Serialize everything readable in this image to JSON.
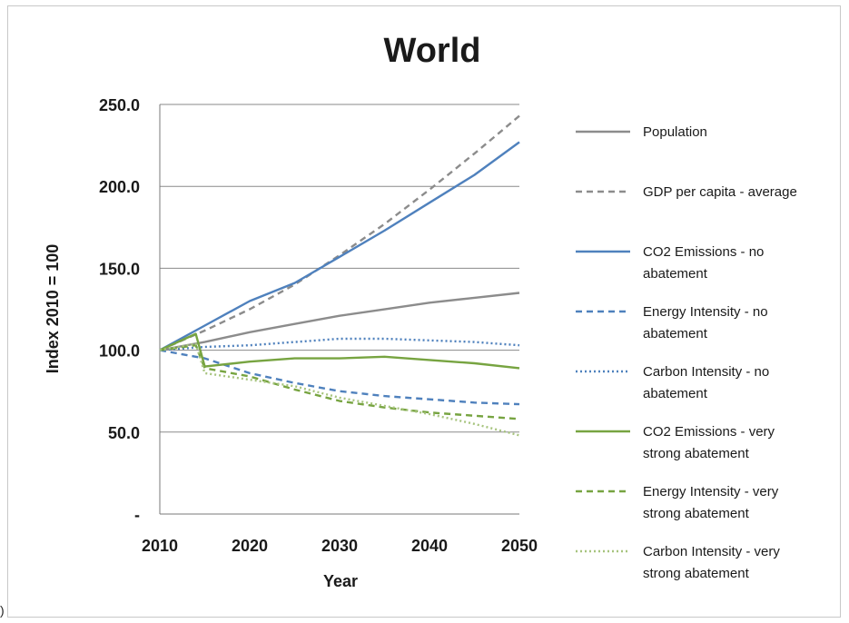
{
  "corner_text": ")",
  "chart_data": {
    "type": "line",
    "title": "World",
    "xlabel": "Year",
    "ylabel": "Index 2010 = 100",
    "xlim": [
      2010,
      2050
    ],
    "ylim": [
      0,
      250
    ],
    "x_ticks": [
      2010,
      2020,
      2030,
      2040,
      2050
    ],
    "y_ticks": [
      {
        "value": 0,
        "label": "-"
      },
      {
        "value": 50,
        "label": "50.0"
      },
      {
        "value": 100,
        "label": "100.0"
      },
      {
        "value": 150,
        "label": "150.0"
      },
      {
        "value": 200,
        "label": "200.0"
      },
      {
        "value": 250,
        "label": "250.0"
      }
    ],
    "grid": "horizontal",
    "legend_position": "right",
    "series": [
      {
        "name": "Population",
        "label_lines": [
          "Population"
        ],
        "color": "#8c8c8c",
        "dash": "solid",
        "points": [
          [
            2010,
            100
          ],
          [
            2015,
            105
          ],
          [
            2020,
            111
          ],
          [
            2025,
            116
          ],
          [
            2030,
            121
          ],
          [
            2035,
            125
          ],
          [
            2040,
            129
          ],
          [
            2045,
            132
          ],
          [
            2050,
            135
          ]
        ]
      },
      {
        "name": "GDP per capita - average",
        "label_lines": [
          "GDP per capita - average"
        ],
        "color": "#8c8c8c",
        "dash": "dashed",
        "points": [
          [
            2010,
            100
          ],
          [
            2015,
            112
          ],
          [
            2020,
            125
          ],
          [
            2025,
            140
          ],
          [
            2030,
            158
          ],
          [
            2035,
            177
          ],
          [
            2040,
            198
          ],
          [
            2045,
            220
          ],
          [
            2050,
            243
          ]
        ]
      },
      {
        "name": "CO2 Emissions - no abatement",
        "label_lines": [
          "CO2 Emissions - no",
          "abatement"
        ],
        "color": "#4f81bd",
        "dash": "solid",
        "points": [
          [
            2010,
            100
          ],
          [
            2015,
            115
          ],
          [
            2020,
            130
          ],
          [
            2025,
            141
          ],
          [
            2030,
            157
          ],
          [
            2035,
            173
          ],
          [
            2040,
            190
          ],
          [
            2045,
            207
          ],
          [
            2050,
            227
          ]
        ]
      },
      {
        "name": "Energy Intensity - no abatement",
        "label_lines": [
          "Energy Intensity - no",
          "abatement"
        ],
        "color": "#4f81bd",
        "dash": "dashed",
        "points": [
          [
            2010,
            100
          ],
          [
            2015,
            95
          ],
          [
            2020,
            86
          ],
          [
            2025,
            80
          ],
          [
            2030,
            75
          ],
          [
            2035,
            72
          ],
          [
            2040,
            70
          ],
          [
            2045,
            68
          ],
          [
            2050,
            67
          ]
        ]
      },
      {
        "name": "Carbon Intensity - no abatement",
        "label_lines": [
          "Carbon Intensity - no",
          "abatement"
        ],
        "color": "#4f81bd",
        "dash": "dotted",
        "points": [
          [
            2010,
            100
          ],
          [
            2015,
            102
          ],
          [
            2020,
            103
          ],
          [
            2025,
            105
          ],
          [
            2030,
            107
          ],
          [
            2035,
            107
          ],
          [
            2040,
            106
          ],
          [
            2045,
            105
          ],
          [
            2050,
            103
          ]
        ]
      },
      {
        "name": "CO2 Emissions - very strong abatement",
        "label_lines": [
          "CO2 Emissions - very",
          "strong abatement"
        ],
        "color": "#77a441",
        "dash": "solid",
        "points": [
          [
            2010,
            100
          ],
          [
            2014,
            110
          ],
          [
            2015,
            90
          ],
          [
            2020,
            93
          ],
          [
            2025,
            95
          ],
          [
            2030,
            95
          ],
          [
            2035,
            96
          ],
          [
            2040,
            94
          ],
          [
            2045,
            92
          ],
          [
            2050,
            89
          ]
        ]
      },
      {
        "name": "Energy Intensity - very strong abatement",
        "label_lines": [
          "Energy Intensity - very",
          "strong abatement"
        ],
        "color": "#77a441",
        "dash": "dashed",
        "points": [
          [
            2010,
            100
          ],
          [
            2014,
            103
          ],
          [
            2015,
            89
          ],
          [
            2020,
            84
          ],
          [
            2025,
            76
          ],
          [
            2030,
            69
          ],
          [
            2035,
            65
          ],
          [
            2040,
            62
          ],
          [
            2045,
            60
          ],
          [
            2050,
            58
          ]
        ]
      },
      {
        "name": "Carbon Intensity - very strong abatement",
        "label_lines": [
          "Carbon Intensity - very",
          "strong abatement"
        ],
        "color": "#a7c47e",
        "dash": "dotted",
        "points": [
          [
            2010,
            100
          ],
          [
            2014,
            104
          ],
          [
            2015,
            86
          ],
          [
            2020,
            82
          ],
          [
            2025,
            78
          ],
          [
            2030,
            71
          ],
          [
            2035,
            66
          ],
          [
            2040,
            61
          ],
          [
            2045,
            55
          ],
          [
            2050,
            48
          ]
        ]
      }
    ]
  }
}
